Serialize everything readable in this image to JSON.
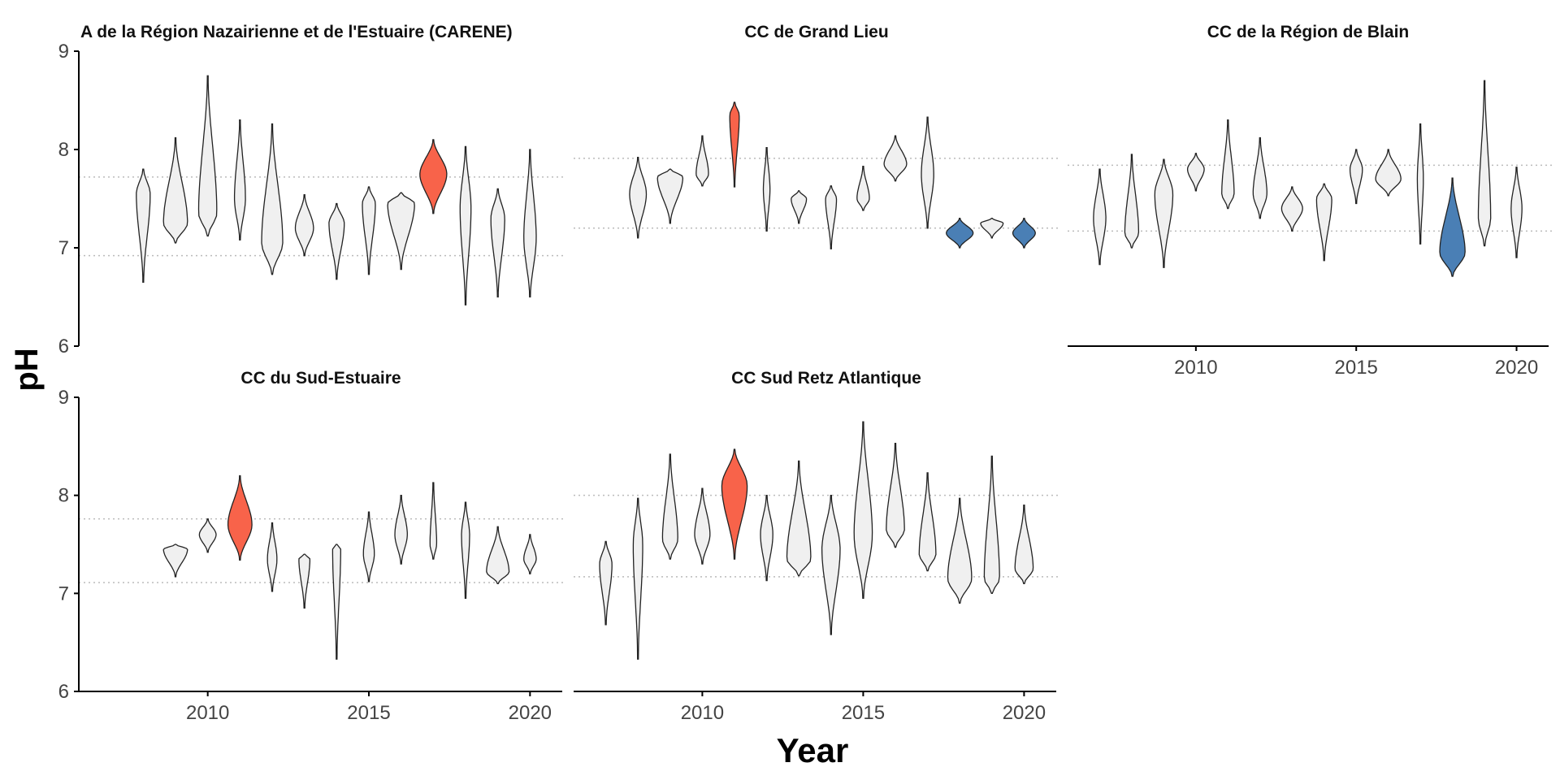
{
  "colors": {
    "neutral": "#f0f0f0",
    "high": "#f8634a",
    "low": "#4a7fb5"
  },
  "chart_data": {
    "type": "violin",
    "ylabel": "pH",
    "xlabel": "Year",
    "ylim": [
      6,
      9
    ],
    "yticks": [
      "6",
      "7",
      "8",
      "9"
    ],
    "xlim": [
      2006,
      2021
    ],
    "xticks": [
      "2010",
      "2015",
      "2020"
    ],
    "panels": [
      {
        "title": "A de la Région Nazairienne et de l'Estuaire (CARENE)",
        "show_y_axis": true,
        "show_x_axis": false,
        "ref_lines": [
          7.72,
          6.92
        ],
        "violins": [
          {
            "year": 2008,
            "min": 6.65,
            "max": 7.8,
            "w": 0.45,
            "mode": 7.55,
            "highlight": "none"
          },
          {
            "year": 2009,
            "min": 7.05,
            "max": 8.12,
            "w": 0.8,
            "mode": 7.25,
            "highlight": "none"
          },
          {
            "year": 2010,
            "min": 7.12,
            "max": 8.75,
            "w": 0.6,
            "mode": 7.35,
            "highlight": "none"
          },
          {
            "year": 2011,
            "min": 7.08,
            "max": 8.3,
            "w": 0.35,
            "mode": 7.5,
            "highlight": "none"
          },
          {
            "year": 2012,
            "min": 6.73,
            "max": 8.26,
            "w": 0.7,
            "mode": 7.05,
            "highlight": "none"
          },
          {
            "year": 2013,
            "min": 6.92,
            "max": 7.54,
            "w": 0.6,
            "mode": 7.2,
            "highlight": "none"
          },
          {
            "year": 2014,
            "min": 6.68,
            "max": 7.45,
            "w": 0.5,
            "mode": 7.25,
            "highlight": "none"
          },
          {
            "year": 2015,
            "min": 6.73,
            "max": 7.62,
            "w": 0.42,
            "mode": 7.45,
            "highlight": "none"
          },
          {
            "year": 2016,
            "min": 6.78,
            "max": 7.56,
            "w": 0.9,
            "mode": 7.45,
            "highlight": "none"
          },
          {
            "year": 2017,
            "min": 7.35,
            "max": 8.1,
            "w": 0.9,
            "mode": 7.75,
            "highlight": "high"
          },
          {
            "year": 2018,
            "min": 6.42,
            "max": 8.03,
            "w": 0.35,
            "mode": 7.4,
            "highlight": "none"
          },
          {
            "year": 2019,
            "min": 6.5,
            "max": 7.6,
            "w": 0.45,
            "mode": 7.3,
            "highlight": "none"
          },
          {
            "year": 2020,
            "min": 6.5,
            "max": 8.0,
            "w": 0.4,
            "mode": 7.1,
            "highlight": "none"
          }
        ]
      },
      {
        "title": "CC de Grand Lieu",
        "show_y_axis": false,
        "show_x_axis": false,
        "ref_lines": [
          7.91,
          7.2
        ],
        "violins": [
          {
            "year": 2008,
            "min": 7.1,
            "max": 7.92,
            "w": 0.55,
            "mode": 7.55,
            "highlight": "none"
          },
          {
            "year": 2009,
            "min": 7.25,
            "max": 7.8,
            "w": 0.85,
            "mode": 7.72,
            "highlight": "none"
          },
          {
            "year": 2010,
            "min": 7.63,
            "max": 8.14,
            "w": 0.4,
            "mode": 7.75,
            "highlight": "none"
          },
          {
            "year": 2011,
            "min": 7.62,
            "max": 8.48,
            "w": 0.3,
            "mode": 8.35,
            "highlight": "high"
          },
          {
            "year": 2012,
            "min": 7.17,
            "max": 8.02,
            "w": 0.2,
            "mode": 7.6,
            "highlight": "none"
          },
          {
            "year": 2013,
            "min": 7.25,
            "max": 7.58,
            "w": 0.5,
            "mode": 7.5,
            "highlight": "none"
          },
          {
            "year": 2014,
            "min": 6.99,
            "max": 7.63,
            "w": 0.35,
            "mode": 7.5,
            "highlight": "none"
          },
          {
            "year": 2015,
            "min": 7.38,
            "max": 7.83,
            "w": 0.4,
            "mode": 7.5,
            "highlight": "none"
          },
          {
            "year": 2016,
            "min": 7.68,
            "max": 8.14,
            "w": 0.75,
            "mode": 7.85,
            "highlight": "none"
          },
          {
            "year": 2017,
            "min": 7.2,
            "max": 8.33,
            "w": 0.4,
            "mode": 7.75,
            "highlight": "none"
          },
          {
            "year": 2018,
            "min": 7.0,
            "max": 7.3,
            "w": 0.9,
            "mode": 7.15,
            "highlight": "low"
          },
          {
            "year": 2019,
            "min": 7.1,
            "max": 7.3,
            "w": 0.75,
            "mode": 7.25,
            "highlight": "none"
          },
          {
            "year": 2020,
            "min": 7.0,
            "max": 7.3,
            "w": 0.75,
            "mode": 7.15,
            "highlight": "low"
          }
        ]
      },
      {
        "title": "CC de la Région de Blain",
        "show_y_axis": false,
        "show_x_axis": true,
        "ref_lines": [
          7.84,
          7.17
        ],
        "violins": [
          {
            "year": 2007,
            "min": 6.83,
            "max": 7.8,
            "w": 0.4,
            "mode": 7.3,
            "highlight": "none"
          },
          {
            "year": 2008,
            "min": 7.0,
            "max": 7.95,
            "w": 0.45,
            "mode": 7.15,
            "highlight": "none"
          },
          {
            "year": 2009,
            "min": 6.8,
            "max": 7.9,
            "w": 0.6,
            "mode": 7.55,
            "highlight": "none"
          },
          {
            "year": 2010,
            "min": 7.58,
            "max": 7.96,
            "w": 0.55,
            "mode": 7.8,
            "highlight": "none"
          },
          {
            "year": 2011,
            "min": 7.4,
            "max": 8.3,
            "w": 0.4,
            "mode": 7.55,
            "highlight": "none"
          },
          {
            "year": 2012,
            "min": 7.3,
            "max": 8.12,
            "w": 0.45,
            "mode": 7.55,
            "highlight": "none"
          },
          {
            "year": 2013,
            "min": 7.17,
            "max": 7.62,
            "w": 0.7,
            "mode": 7.4,
            "highlight": "none"
          },
          {
            "year": 2014,
            "min": 6.87,
            "max": 7.65,
            "w": 0.5,
            "mode": 7.5,
            "highlight": "none"
          },
          {
            "year": 2015,
            "min": 7.45,
            "max": 8.0,
            "w": 0.4,
            "mode": 7.8,
            "highlight": "none"
          },
          {
            "year": 2016,
            "min": 7.53,
            "max": 8.0,
            "w": 0.85,
            "mode": 7.7,
            "highlight": "none"
          },
          {
            "year": 2017,
            "min": 7.04,
            "max": 8.26,
            "w": 0.18,
            "mode": 7.7,
            "highlight": "none"
          },
          {
            "year": 2018,
            "min": 6.71,
            "max": 7.71,
            "w": 0.85,
            "mode": 6.95,
            "highlight": "low"
          },
          {
            "year": 2019,
            "min": 7.02,
            "max": 8.7,
            "w": 0.4,
            "mode": 7.3,
            "highlight": "none"
          },
          {
            "year": 2020,
            "min": 6.9,
            "max": 7.82,
            "w": 0.35,
            "mode": 7.4,
            "highlight": "none"
          }
        ]
      },
      {
        "title": "CC du Sud-Estuaire",
        "show_y_axis": true,
        "show_x_axis": true,
        "ref_lines": [
          7.76,
          7.11
        ],
        "violins": [
          {
            "year": 2009,
            "min": 7.17,
            "max": 7.5,
            "w": 0.8,
            "mode": 7.45,
            "highlight": "none"
          },
          {
            "year": 2010,
            "min": 7.42,
            "max": 7.76,
            "w": 0.55,
            "mode": 7.6,
            "highlight": "none"
          },
          {
            "year": 2011,
            "min": 7.34,
            "max": 8.2,
            "w": 0.8,
            "mode": 7.7,
            "highlight": "high"
          },
          {
            "year": 2012,
            "min": 7.02,
            "max": 7.72,
            "w": 0.3,
            "mode": 7.35,
            "highlight": "none"
          },
          {
            "year": 2013,
            "min": 6.85,
            "max": 7.4,
            "w": 0.35,
            "mode": 7.35,
            "highlight": "none"
          },
          {
            "year": 2014,
            "min": 6.33,
            "max": 7.5,
            "w": 0.25,
            "mode": 7.45,
            "highlight": "none"
          },
          {
            "year": 2015,
            "min": 7.12,
            "max": 7.83,
            "w": 0.35,
            "mode": 7.4,
            "highlight": "none"
          },
          {
            "year": 2016,
            "min": 7.3,
            "max": 8.0,
            "w": 0.4,
            "mode": 7.6,
            "highlight": "none"
          },
          {
            "year": 2017,
            "min": 7.35,
            "max": 8.13,
            "w": 0.2,
            "mode": 7.5,
            "highlight": "none"
          },
          {
            "year": 2018,
            "min": 6.95,
            "max": 7.93,
            "w": 0.25,
            "mode": 7.6,
            "highlight": "none"
          },
          {
            "year": 2019,
            "min": 7.1,
            "max": 7.68,
            "w": 0.75,
            "mode": 7.22,
            "highlight": "none"
          },
          {
            "year": 2020,
            "min": 7.2,
            "max": 7.6,
            "w": 0.4,
            "mode": 7.35,
            "highlight": "none"
          }
        ]
      },
      {
        "title": "CC Sud Retz Atlantique",
        "show_y_axis": false,
        "show_x_axis": true,
        "ref_lines": [
          8.0,
          7.17
        ],
        "violins": [
          {
            "year": 2007,
            "min": 6.68,
            "max": 7.53,
            "w": 0.4,
            "mode": 7.3,
            "highlight": "none"
          },
          {
            "year": 2008,
            "min": 6.33,
            "max": 7.97,
            "w": 0.3,
            "mode": 7.5,
            "highlight": "none"
          },
          {
            "year": 2009,
            "min": 7.35,
            "max": 8.42,
            "w": 0.5,
            "mode": 7.55,
            "highlight": "none"
          },
          {
            "year": 2010,
            "min": 7.3,
            "max": 8.07,
            "w": 0.5,
            "mode": 7.6,
            "highlight": "none"
          },
          {
            "year": 2011,
            "min": 7.35,
            "max": 8.47,
            "w": 0.85,
            "mode": 8.1,
            "highlight": "high"
          },
          {
            "year": 2012,
            "min": 7.13,
            "max": 8.0,
            "w": 0.4,
            "mode": 7.6,
            "highlight": "none"
          },
          {
            "year": 2013,
            "min": 7.18,
            "max": 8.35,
            "w": 0.8,
            "mode": 7.35,
            "highlight": "none"
          },
          {
            "year": 2014,
            "min": 6.58,
            "max": 8.0,
            "w": 0.6,
            "mode": 7.45,
            "highlight": "none"
          },
          {
            "year": 2015,
            "min": 6.95,
            "max": 8.75,
            "w": 0.6,
            "mode": 7.6,
            "highlight": "none"
          },
          {
            "year": 2016,
            "min": 7.47,
            "max": 8.53,
            "w": 0.6,
            "mode": 7.65,
            "highlight": "none"
          },
          {
            "year": 2017,
            "min": 7.23,
            "max": 8.23,
            "w": 0.55,
            "mode": 7.4,
            "highlight": "none"
          },
          {
            "year": 2018,
            "min": 6.9,
            "max": 7.97,
            "w": 0.8,
            "mode": 7.15,
            "highlight": "none"
          },
          {
            "year": 2019,
            "min": 7.0,
            "max": 8.4,
            "w": 0.5,
            "mode": 7.15,
            "highlight": "none"
          },
          {
            "year": 2020,
            "min": 7.1,
            "max": 7.9,
            "w": 0.6,
            "mode": 7.25,
            "highlight": "none"
          }
        ]
      }
    ]
  }
}
